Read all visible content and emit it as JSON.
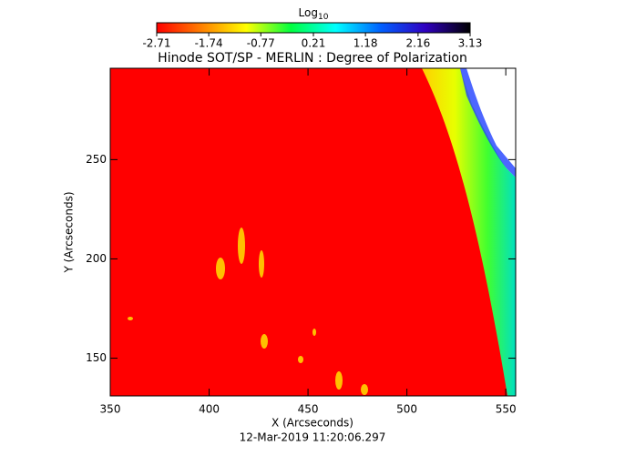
{
  "chart_data": {
    "type": "image",
    "title": "Hinode SOT/SP - MERLIN : Degree of Polarization",
    "x_label": "X (Arcseconds)",
    "y_label": "Y (Arcseconds)",
    "footer": "12-Mar-2019 11:20:06.297",
    "xlim": [
      350,
      555
    ],
    "ylim": [
      131,
      296
    ],
    "xticks": [
      350,
      400,
      450,
      500,
      550
    ],
    "yticks": [
      150,
      200,
      250
    ],
    "colorbar": {
      "label": "Log",
      "label_subscript": "10",
      "lim": [
        -2.71,
        3.13
      ],
      "ticks": [
        -2.71,
        -1.74,
        -0.77,
        0.21,
        1.18,
        2.16,
        3.13
      ],
      "colormap": [
        "#ff0000",
        "#ff8000",
        "#ffff00",
        "#00ff40",
        "#00ffff",
        "#0060ff",
        "#3000c0",
        "#000000"
      ]
    }
  }
}
